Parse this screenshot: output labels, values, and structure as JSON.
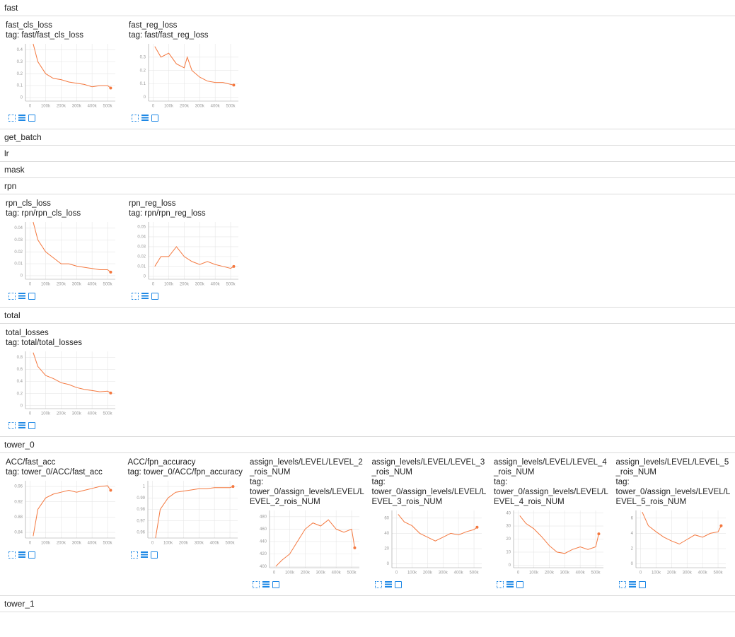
{
  "sections": [
    {
      "name": "fast",
      "cards": [
        {
          "title": "fast_cls_loss",
          "tag": "tag: fast/fast_cls_loss",
          "chart": {
            "type": "line",
            "x": [
              20000,
              50000,
              100000,
              150000,
              200000,
              250000,
              300000,
              350000,
              400000,
              450000,
              500000,
              520000
            ],
            "series": [
              {
                "color": "#f4783f",
                "values": [
                  0.45,
                  0.3,
                  0.2,
                  0.16,
                  0.15,
                  0.13,
                  0.12,
                  0.11,
                  0.09,
                  0.1,
                  0.1,
                  0.08
                ]
              }
            ],
            "xlim": [
              -30000,
              550000
            ],
            "ylim": [
              -0.03,
              0.45
            ],
            "xticks": [
              0,
              {
                "value": 100000,
                "label": "100k"
              },
              {
                "value": 200000,
                "label": "200k"
              },
              {
                "value": 300000,
                "label": "300k"
              },
              {
                "value": 400000,
                "label": "400k"
              },
              {
                "value": 500000,
                "label": "500k"
              }
            ],
            "yticks": [
              0,
              0.1,
              0.2,
              0.3,
              0.4
            ],
            "grid": true
          }
        },
        {
          "title": "fast_reg_loss",
          "tag": "tag: fast/fast_reg_loss",
          "chart": {
            "type": "line",
            "x": [
              10000,
              50000,
              100000,
              150000,
              200000,
              220000,
              250000,
              300000,
              350000,
              400000,
              450000,
              520000
            ],
            "series": [
              {
                "color": "#f4783f",
                "values": [
                  0.38,
                  0.3,
                  0.33,
                  0.25,
                  0.22,
                  0.3,
                  0.2,
                  0.15,
                  0.12,
                  0.11,
                  0.11,
                  0.09
                ]
              }
            ],
            "xlim": [
              -30000,
              550000
            ],
            "ylim": [
              -0.03,
              0.4
            ],
            "xticks": [
              0,
              {
                "value": 100000,
                "label": "100k"
              },
              {
                "value": 200000,
                "label": "200k"
              },
              {
                "value": 300000,
                "label": "300k"
              },
              {
                "value": 400000,
                "label": "400k"
              },
              {
                "value": 500000,
                "label": "500k"
              }
            ],
            "yticks": [
              0,
              0.1,
              0.2,
              0.3
            ],
            "grid": true
          }
        }
      ]
    },
    {
      "name": "get_batch",
      "cards": []
    },
    {
      "name": "lr",
      "cards": []
    },
    {
      "name": "mask",
      "cards": []
    },
    {
      "name": "rpn",
      "cards": [
        {
          "title": "rpn_cls_loss",
          "tag": "tag: rpn/rpn_cls_loss",
          "chart": {
            "type": "line",
            "x": [
              20000,
              50000,
              100000,
              150000,
              200000,
              250000,
              300000,
              350000,
              400000,
              450000,
              500000,
              520000
            ],
            "series": [
              {
                "color": "#f4783f",
                "values": [
                  0.045,
                  0.03,
                  0.02,
                  0.015,
                  0.01,
                  0.01,
                  0.008,
                  0.007,
                  0.006,
                  0.005,
                  0.005,
                  0.003
                ]
              }
            ],
            "xlim": [
              -30000,
              550000
            ],
            "ylim": [
              -0.003,
              0.045
            ],
            "xticks": [
              0,
              {
                "value": 100000,
                "label": "100k"
              },
              {
                "value": 200000,
                "label": "200k"
              },
              {
                "value": 300000,
                "label": "300k"
              },
              {
                "value": 400000,
                "label": "400k"
              },
              {
                "value": 500000,
                "label": "500k"
              }
            ],
            "yticks": [
              0,
              0.01,
              0.02,
              0.03,
              0.04
            ],
            "grid": true
          }
        },
        {
          "title": "rpn_reg_loss",
          "tag": "tag: rpn/rpn_reg_loss",
          "chart": {
            "type": "line",
            "x": [
              10000,
              50000,
              100000,
              150000,
              200000,
              250000,
              300000,
              350000,
              400000,
              450000,
              500000,
              520000
            ],
            "series": [
              {
                "color": "#f4783f",
                "values": [
                  0.01,
                  0.02,
                  0.02,
                  0.03,
                  0.02,
                  0.015,
                  0.012,
                  0.015,
                  0.012,
                  0.01,
                  0.008,
                  0.01
                ]
              }
            ],
            "xlim": [
              -30000,
              550000
            ],
            "ylim": [
              -0.003,
              0.055
            ],
            "xticks": [
              0,
              {
                "value": 100000,
                "label": "100k"
              },
              {
                "value": 200000,
                "label": "200k"
              },
              {
                "value": 300000,
                "label": "300k"
              },
              {
                "value": 400000,
                "label": "400k"
              },
              {
                "value": 500000,
                "label": "500k"
              }
            ],
            "yticks": [
              0,
              0.01,
              0.02,
              0.03,
              0.04,
              0.05
            ],
            "grid": true
          }
        }
      ]
    },
    {
      "name": "total",
      "cards": [
        {
          "title": "total_losses",
          "tag": "tag: total/total_losses",
          "chart": {
            "type": "line",
            "x": [
              20000,
              50000,
              100000,
              150000,
              200000,
              250000,
              300000,
              350000,
              400000,
              450000,
              500000,
              520000
            ],
            "series": [
              {
                "color": "#f4783f",
                "values": [
                  0.88,
                  0.65,
                  0.5,
                  0.45,
                  0.38,
                  0.35,
                  0.3,
                  0.27,
                  0.25,
                  0.23,
                  0.24,
                  0.21
                ]
              }
            ],
            "xlim": [
              -30000,
              550000
            ],
            "ylim": [
              -0.05,
              0.9
            ],
            "xticks": [
              0,
              {
                "value": 100000,
                "label": "100k"
              },
              {
                "value": 200000,
                "label": "200k"
              },
              {
                "value": 300000,
                "label": "300k"
              },
              {
                "value": 400000,
                "label": "400k"
              },
              {
                "value": 500000,
                "label": "500k"
              }
            ],
            "yticks": [
              0,
              0.2,
              0.4,
              0.6,
              0.8
            ],
            "grid": true
          }
        }
      ]
    },
    {
      "name": "tower_0",
      "cards": [
        {
          "title": "ACC/fast_acc",
          "tag": "tag: tower_0/ACC/fast_acc",
          "chart": {
            "type": "line",
            "x": [
              20000,
              50000,
              100000,
              150000,
              200000,
              250000,
              300000,
              350000,
              400000,
              450000,
              500000,
              520000
            ],
            "series": [
              {
                "color": "#f4783f",
                "values": [
                  0.83,
                  0.9,
                  0.93,
                  0.94,
                  0.945,
                  0.95,
                  0.945,
                  0.95,
                  0.955,
                  0.96,
                  0.962,
                  0.95
                ]
              }
            ],
            "xlim": [
              -30000,
              550000
            ],
            "ylim": [
              0.825,
              0.975
            ],
            "xticks": [
              0,
              {
                "value": 100000,
                "label": "100k"
              },
              {
                "value": 200000,
                "label": "200k"
              },
              {
                "value": 300000,
                "label": "300k"
              },
              {
                "value": 400000,
                "label": "400k"
              },
              {
                "value": 500000,
                "label": "500k"
              }
            ],
            "yticks": [
              0.84,
              0.88,
              0.92,
              0.96
            ],
            "grid": true
          }
        },
        {
          "title": "ACC/fpn_accuracy",
          "tag": "tag: tower_0/ACC/fpn_accuracy",
          "chart": {
            "type": "line",
            "x": [
              20000,
              50000,
              100000,
              150000,
              200000,
              250000,
              300000,
              350000,
              400000,
              450000,
              500000,
              520000
            ],
            "series": [
              {
                "color": "#f4783f",
                "values": [
                  0.955,
                  0.98,
                  0.99,
                  0.995,
                  0.996,
                  0.997,
                  0.998,
                  0.998,
                  0.999,
                  0.999,
                  0.999,
                  1
                ]
              }
            ],
            "xlim": [
              -30000,
              550000
            ],
            "ylim": [
              0.955,
              1.005
            ],
            "xticks": [
              0,
              {
                "value": 100000,
                "label": "100k"
              },
              {
                "value": 200000,
                "label": "200k"
              },
              {
                "value": 300000,
                "label": "300k"
              },
              {
                "value": 400000,
                "label": "400k"
              },
              {
                "value": 500000,
                "label": "500k"
              }
            ],
            "yticks": [
              0.96,
              0.97,
              0.98,
              0.99,
              1
            ],
            "grid": true
          }
        },
        {
          "title": "assign_levels/LEVEL/LEVEL_2_rois_NUM",
          "tag": "tag: tower_0/assign_levels/LEVEL/LEVEL_2_rois_NUM",
          "chart": {
            "type": "line",
            "x": [
              10000,
              50000,
              100000,
              150000,
              200000,
              250000,
              300000,
              350000,
              400000,
              450000,
              500000,
              520000
            ],
            "series": [
              {
                "color": "#f4783f",
                "values": [
                  400,
                  410,
                  420,
                  440,
                  460,
                  470,
                  465,
                  475,
                  460,
                  455,
                  460,
                  430
                ]
              }
            ],
            "xlim": [
              -30000,
              550000
            ],
            "ylim": [
              398,
              490
            ],
            "xticks": [
              0,
              {
                "value": 100000,
                "label": "100k"
              },
              {
                "value": 200000,
                "label": "200k"
              },
              {
                "value": 300000,
                "label": "300k"
              },
              {
                "value": 400000,
                "label": "400k"
              },
              {
                "value": 500000,
                "label": "500k"
              }
            ],
            "yticks": [
              400,
              420,
              440,
              460,
              480
            ],
            "grid": true
          }
        },
        {
          "title": "assign_levels/LEVEL/LEVEL_3_rois_NUM",
          "tag": "tag: tower_0/assign_levels/LEVEL/LEVEL_3_rois_NUM",
          "chart": {
            "type": "line",
            "x": [
              10000,
              50000,
              100000,
              150000,
              200000,
              250000,
              300000,
              350000,
              400000,
              450000,
              500000,
              520000
            ],
            "series": [
              {
                "color": "#f4783f",
                "values": [
                  65,
                  55,
                  50,
                  40,
                  35,
                  30,
                  35,
                  40,
                  38,
                  42,
                  45,
                  48
                ]
              }
            ],
            "xlim": [
              -30000,
              550000
            ],
            "ylim": [
              -5,
              70
            ],
            "xticks": [
              0,
              {
                "value": 100000,
                "label": "100k"
              },
              {
                "value": 200000,
                "label": "200k"
              },
              {
                "value": 300000,
                "label": "300k"
              },
              {
                "value": 400000,
                "label": "400k"
              },
              {
                "value": 500000,
                "label": "500k"
              }
            ],
            "yticks": [
              0,
              20,
              40,
              60
            ],
            "grid": true
          }
        },
        {
          "title": "assign_levels/LEVEL/LEVEL_4_rois_NUM",
          "tag": "tag: tower_0/assign_levels/LEVEL/LEVEL_4_rois_NUM",
          "chart": {
            "type": "line",
            "x": [
              10000,
              50000,
              100000,
              150000,
              200000,
              250000,
              300000,
              350000,
              400000,
              450000,
              500000,
              520000
            ],
            "series": [
              {
                "color": "#f4783f",
                "values": [
                  38,
                  32,
                  28,
                  22,
                  15,
                  10,
                  9,
                  12,
                  14,
                  12,
                  14,
                  24
                ]
              }
            ],
            "xlim": [
              -30000,
              550000
            ],
            "ylim": [
              -2,
              42
            ],
            "xticks": [
              0,
              {
                "value": 100000,
                "label": "100k"
              },
              {
                "value": 200000,
                "label": "200k"
              },
              {
                "value": 300000,
                "label": "300k"
              },
              {
                "value": 400000,
                "label": "400k"
              },
              {
                "value": 500000,
                "label": "500k"
              }
            ],
            "yticks": [
              0,
              10,
              20,
              30,
              40
            ],
            "grid": true
          }
        },
        {
          "title": "assign_levels/LEVEL/LEVEL_5_rois_NUM",
          "tag": "tag: tower_0/assign_levels/LEVEL/LEVEL_5_rois_NUM",
          "chart": {
            "type": "line",
            "x": [
              10000,
              50000,
              100000,
              150000,
              200000,
              250000,
              300000,
              350000,
              400000,
              450000,
              500000,
              520000
            ],
            "series": [
              {
                "color": "#f4783f",
                "values": [
                  6.8,
                  5,
                  4.2,
                  3.5,
                  3,
                  2.6,
                  3.2,
                  3.8,
                  3.5,
                  4,
                  4.2,
                  5
                ]
              }
            ],
            "xlim": [
              -30000,
              550000
            ],
            "ylim": [
              -0.5,
              7
            ],
            "xticks": [
              0,
              {
                "value": 100000,
                "label": "100k"
              },
              {
                "value": 200000,
                "label": "200k"
              },
              {
                "value": 300000,
                "label": "300k"
              },
              {
                "value": 400000,
                "label": "400k"
              },
              {
                "value": 500000,
                "label": "500k"
              }
            ],
            "yticks": [
              0,
              2,
              4,
              6
            ],
            "grid": true
          }
        }
      ]
    },
    {
      "name": "tower_1",
      "cards": []
    }
  ]
}
